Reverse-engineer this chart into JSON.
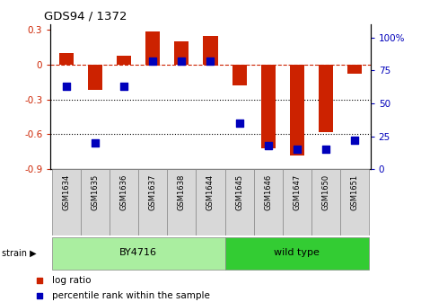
{
  "title": "GDS94 / 1372",
  "samples": [
    "GSM1634",
    "GSM1635",
    "GSM1636",
    "GSM1637",
    "GSM1638",
    "GSM1644",
    "GSM1645",
    "GSM1646",
    "GSM1647",
    "GSM1650",
    "GSM1651"
  ],
  "log_ratio": [
    0.1,
    -0.22,
    0.08,
    0.29,
    0.2,
    0.25,
    -0.18,
    -0.72,
    -0.78,
    -0.58,
    -0.08
  ],
  "percentile_rank": [
    63,
    20,
    63,
    82,
    82,
    82,
    35,
    18,
    15,
    15,
    22
  ],
  "ylim_left": [
    -0.9,
    0.35
  ],
  "ylim_right": [
    0,
    110
  ],
  "yticks_left": [
    -0.9,
    -0.6,
    -0.3,
    0.0,
    0.3
  ],
  "yticks_right": [
    0,
    25,
    50,
    75,
    100
  ],
  "bar_color": "#CC2200",
  "dot_color": "#0000BB",
  "by4716_color": "#AAEEA0",
  "wildtype_color": "#33CC33",
  "strain_label_color": "black",
  "legend_items": [
    "log ratio",
    "percentile rank within the sample"
  ],
  "bar_width": 0.5,
  "dot_size": 40
}
